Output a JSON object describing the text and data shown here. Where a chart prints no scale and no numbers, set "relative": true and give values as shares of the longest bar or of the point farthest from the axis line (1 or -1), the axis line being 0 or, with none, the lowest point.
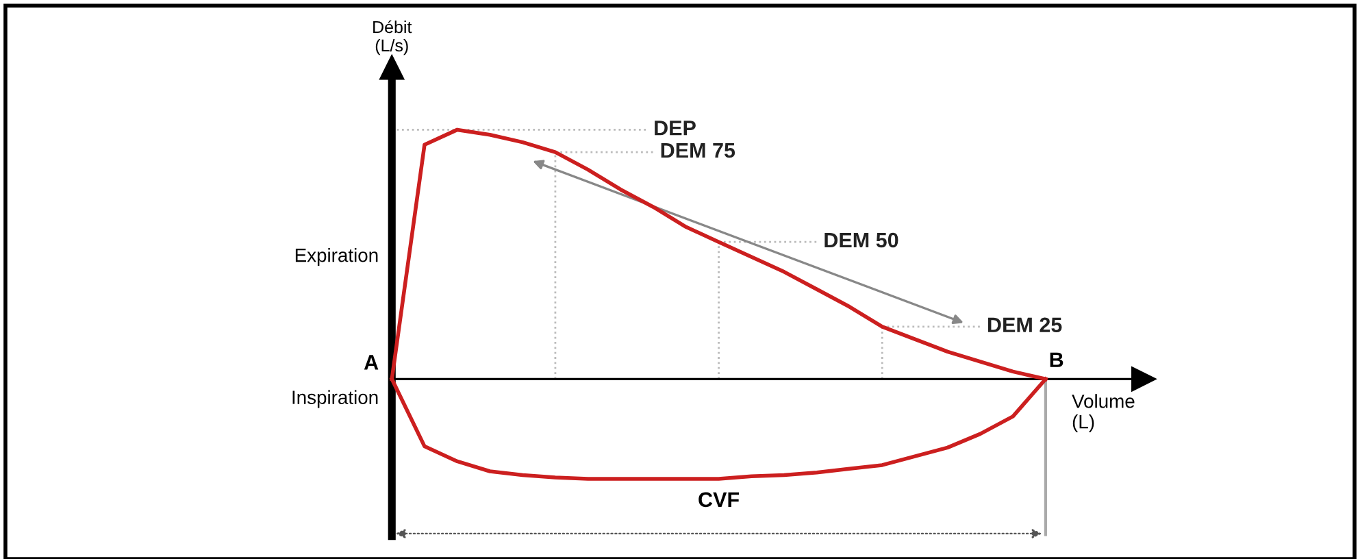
{
  "chart_data": {
    "type": "line",
    "relative": true,
    "xlabel": "Volume\n(L)",
    "ylabel": "Débit\n(L/s)",
    "categories": [
      null,
      null,
      null,
      null,
      null,
      null,
      null,
      null,
      null,
      null,
      null,
      null,
      null,
      null,
      null,
      null,
      null,
      null,
      null,
      null,
      null
    ],
    "series": [
      {
        "color": "#cc1f1f",
        "values": [
          0,
          0.94,
          1.0,
          0.98,
          0.95,
          0.91,
          0.84,
          0.76,
          0.69,
          0.61,
          0.55,
          0.49,
          0.43,
          0.36,
          0.29,
          0.21,
          0.16,
          0.11,
          0.07,
          0.03,
          0
        ]
      },
      {
        "color": "#cc1f1f",
        "values": [
          0,
          -0.27,
          -0.33,
          -0.37,
          -0.385,
          -0.395,
          -0.4,
          -0.4,
          -0.4,
          -0.4,
          -0.4,
          -0.39,
          -0.385,
          -0.375,
          -0.36,
          -0.345,
          -0.31,
          -0.275,
          -0.22,
          -0.15,
          0
        ]
      }
    ],
    "marker": "none",
    "line_style": "solid",
    "ref_lines": [
      {
        "axis": "y",
        "value": 1.0,
        "label": "DEP",
        "color": "#bbbbbb",
        "line_style": "dotted"
      },
      {
        "axis": "y",
        "value": 0.91,
        "label": "DEM 75",
        "color": "#bbbbbb",
        "line_style": "dotted"
      },
      {
        "axis": "y",
        "value": 0.55,
        "label": "DEM 50",
        "color": "#bbbbbb",
        "line_style": "dotted"
      },
      {
        "axis": "y",
        "value": 0.21,
        "label": "DEM 25",
        "color": "#bbbbbb",
        "line_style": "dotted"
      }
    ],
    "annotations": [
      "Expiration",
      "Inspiration",
      "A",
      "B",
      "CVF"
    ]
  }
}
